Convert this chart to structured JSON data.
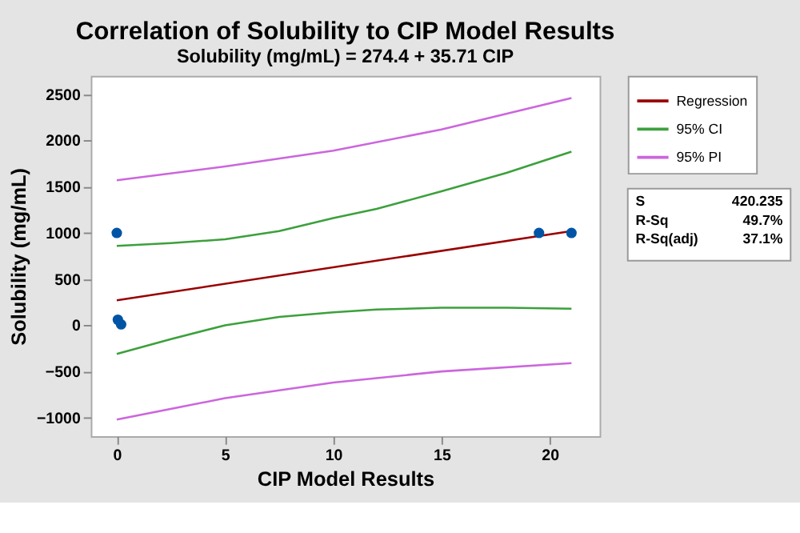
{
  "chart_data": {
    "type": "line",
    "title": "Correlation of Solubility to CIP Model Results",
    "subtitle": "Solubility (mg/mL) = 274.4 + 35.71 CIP",
    "xlabel": "CIP Model Results",
    "ylabel": "Solubility (mg/mL)",
    "xlim": [
      -1.2,
      22.3
    ],
    "xticks": [
      0,
      5,
      10,
      15,
      20
    ],
    "ylim": [
      -1200,
      2700
    ],
    "yticks": [
      -1000,
      -500,
      0,
      500,
      1000,
      1500,
      2000,
      2500
    ],
    "grid": false,
    "legend": "top right",
    "series": [
      {
        "name": "Regression",
        "color": "#990000",
        "x": [
          0,
          21
        ],
        "values": [
          270,
          1020
        ]
      },
      {
        "name": "95% CI",
        "color": "#3ca03c",
        "x": [
          0,
          2.5,
          5,
          7.5,
          10,
          12,
          15,
          18,
          21
        ],
        "values": [
          860,
          890,
          930,
          1020,
          1160,
          1260,
          1450,
          1650,
          1880
        ]
      },
      {
        "color": "#3ca03c",
        "x": [
          0,
          2.5,
          5,
          7.5,
          10,
          12,
          15,
          18,
          21
        ],
        "values": [
          -310,
          -150,
          0,
          90,
          140,
          170,
          190,
          190,
          180
        ]
      },
      {
        "name": "95% PI",
        "color": "#cc66dd",
        "x": [
          0,
          5,
          10,
          15,
          21
        ],
        "values": [
          1570,
          1720,
          1890,
          2120,
          2460
        ]
      },
      {
        "color": "#cc66dd",
        "x": [
          0,
          5,
          10,
          15,
          21
        ],
        "values": [
          -1020,
          -790,
          -620,
          -500,
          -410
        ]
      },
      {
        "color": "#0054a6",
        "type": "scatter",
        "marker": "circle",
        "x": [
          0,
          0.05,
          0.2,
          19.5,
          21
        ],
        "values": [
          1000,
          60,
          10,
          1000,
          1000
        ]
      }
    ],
    "annotations": [
      "S 420.235",
      "R-Sq 49.7%",
      "R-Sq(adj) 37.1%"
    ]
  }
}
